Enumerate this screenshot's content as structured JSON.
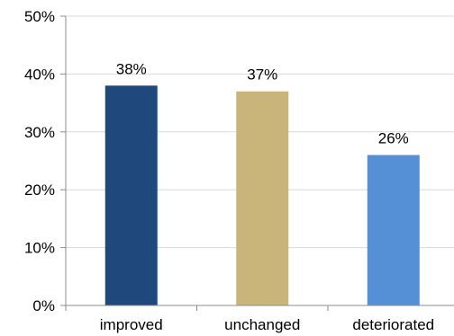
{
  "chart_data": {
    "type": "bar",
    "categories": [
      "improved",
      "unchanged",
      "deteriorated"
    ],
    "values": [
      38,
      37,
      26
    ],
    "data_labels": [
      "38%",
      "37%",
      "26%"
    ],
    "colors": [
      "#1f497d",
      "#c9b57a",
      "#5590d6"
    ],
    "title": "",
    "xlabel": "",
    "ylabel": "",
    "ylim": [
      0,
      50
    ],
    "yticks": [
      0,
      10,
      20,
      30,
      40,
      50
    ],
    "ytick_labels": [
      "0%",
      "10%",
      "20%",
      "30%",
      "40%",
      "50%"
    ],
    "grid": true,
    "legend": "none"
  }
}
